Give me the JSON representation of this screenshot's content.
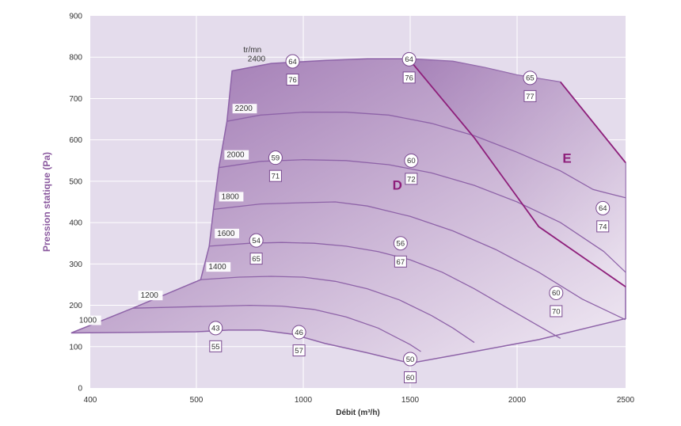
{
  "colors": {
    "plot_background": "#e4dcec",
    "axis_title": "#8b5a9f",
    "curve": "#8e63a8",
    "border": "#8e1f7b",
    "fill_dark": "#9a70ae",
    "fill_light": "#f2ecf5"
  },
  "chart_data": {
    "type": "line",
    "title": "",
    "xlabel": "Débit (m³/h)",
    "ylabel": "Pression statique (Pa)",
    "xlim": [
      400,
      2500
    ],
    "ylim": [
      0,
      900
    ],
    "x_ticks": [
      "400",
      "500",
      "1000",
      "1500",
      "2000",
      "2500"
    ],
    "y_ticks": [
      "0",
      "100",
      "200",
      "300",
      "400",
      "500",
      "600",
      "700",
      "800",
      "900"
    ],
    "grid": true,
    "rpm_unit": "tr/mn",
    "zones": [
      {
        "label": "D",
        "x": 1440,
        "y": 480
      },
      {
        "label": "E",
        "x": 2230,
        "y": 545
      }
    ],
    "speed_curves": [
      {
        "label": "2400",
        "points": [
          [
            667,
            767
          ],
          [
            850,
            785
          ],
          [
            1100,
            792
          ],
          [
            1300,
            796
          ],
          [
            1500,
            796
          ],
          [
            1700,
            790
          ],
          [
            1850,
            775
          ],
          [
            2000,
            757
          ],
          [
            2200,
            740
          ],
          [
            2500,
            545
          ]
        ]
      },
      {
        "label": "2200",
        "points": [
          [
            643,
            645
          ],
          [
            800,
            660
          ],
          [
            1000,
            667
          ],
          [
            1200,
            667
          ],
          [
            1400,
            660
          ],
          [
            1600,
            640
          ],
          [
            1800,
            610
          ],
          [
            2000,
            570
          ],
          [
            2200,
            525
          ],
          [
            2350,
            480
          ],
          [
            2500,
            460
          ]
        ]
      },
      {
        "label": "2000",
        "points": [
          [
            605,
            533
          ],
          [
            800,
            548
          ],
          [
            1000,
            552
          ],
          [
            1200,
            550
          ],
          [
            1400,
            540
          ],
          [
            1600,
            520
          ],
          [
            1800,
            490
          ],
          [
            2000,
            450
          ],
          [
            2200,
            400
          ],
          [
            2400,
            330
          ],
          [
            2500,
            280
          ]
        ]
      },
      {
        "label": "1800",
        "points": [
          [
            580,
            432
          ],
          [
            800,
            445
          ],
          [
            1000,
            448
          ],
          [
            1150,
            450
          ],
          [
            1300,
            440
          ],
          [
            1500,
            415
          ],
          [
            1700,
            380
          ],
          [
            1900,
            335
          ],
          [
            2100,
            280
          ],
          [
            2300,
            215
          ],
          [
            2500,
            165
          ]
        ]
      },
      {
        "label": "1600",
        "points": [
          [
            560,
            343
          ],
          [
            750,
            350
          ],
          [
            900,
            352
          ],
          [
            1050,
            350
          ],
          [
            1200,
            343
          ],
          [
            1350,
            330
          ],
          [
            1500,
            310
          ],
          [
            1650,
            280
          ],
          [
            1800,
            240
          ],
          [
            1950,
            195
          ],
          [
            2100,
            150
          ],
          [
            2200,
            120
          ]
        ]
      },
      {
        "label": "1400",
        "points": [
          [
            520,
            262
          ],
          [
            700,
            268
          ],
          [
            850,
            270
          ],
          [
            1000,
            268
          ],
          [
            1150,
            258
          ],
          [
            1300,
            240
          ],
          [
            1450,
            213
          ],
          [
            1600,
            175
          ],
          [
            1700,
            145
          ],
          [
            1800,
            110
          ]
        ]
      },
      {
        "label": "1200",
        "points": [
          [
            440,
            193
          ],
          [
            600,
            198
          ],
          [
            750,
            200
          ],
          [
            900,
            198
          ],
          [
            1050,
            190
          ],
          [
            1200,
            172
          ],
          [
            1350,
            145
          ],
          [
            1500,
            105
          ],
          [
            1550,
            88
          ]
        ]
      },
      {
        "label": "1000",
        "points": [
          [
            382,
            133
          ],
          [
            500,
            136
          ],
          [
            650,
            140
          ],
          [
            800,
            140
          ],
          [
            950,
            130
          ],
          [
            1100,
            108
          ],
          [
            1300,
            85
          ],
          [
            1500,
            60
          ]
        ]
      }
    ],
    "boundaries": [
      {
        "name": "D/E",
        "points": [
          [
            1493,
            796
          ],
          [
            1800,
            605
          ],
          [
            2100,
            390
          ],
          [
            2500,
            245
          ]
        ]
      },
      {
        "name": "E",
        "points": [
          [
            2200,
            740
          ],
          [
            2500,
            545
          ]
        ]
      }
    ],
    "markers": [
      {
        "circle": "64",
        "square": "76",
        "x": 950,
        "y": 765
      },
      {
        "circle": "64",
        "square": "76",
        "x": 1495,
        "y": 770
      },
      {
        "circle": "65",
        "square": "77",
        "x": 2060,
        "y": 725
      },
      {
        "circle": "59",
        "square": "71",
        "x": 870,
        "y": 532
      },
      {
        "circle": "60",
        "square": "72",
        "x": 1505,
        "y": 525
      },
      {
        "circle": "54",
        "square": "65",
        "x": 780,
        "y": 332
      },
      {
        "circle": "56",
        "square": "67",
        "x": 1455,
        "y": 325
      },
      {
        "circle": "64",
        "square": "74",
        "x": 2395,
        "y": 410
      },
      {
        "circle": "60",
        "square": "70",
        "x": 2180,
        "y": 205
      },
      {
        "circle": "43",
        "square": "55",
        "x": 590,
        "y": 120
      },
      {
        "circle": "46",
        "square": "57",
        "x": 980,
        "y": 110
      },
      {
        "circle": "50",
        "square": "60",
        "x": 1500,
        "y": 45
      }
    ]
  }
}
